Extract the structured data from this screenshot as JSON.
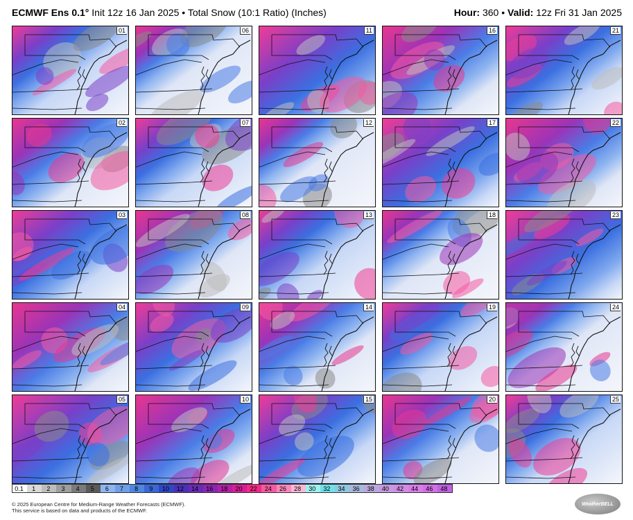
{
  "header": {
    "model": "ECMWF Ens 0.1°",
    "init": "Init 12z 16 Jan 2025",
    "product": "Total Snow (10:1 Ratio) (Inches)",
    "hour_label": "Hour:",
    "hour": "360",
    "valid_label": "Valid:",
    "valid": "12z Fri 31 Jan 2025"
  },
  "members": [
    "01",
    "06",
    "11",
    "16",
    "21",
    "02",
    "07",
    "12",
    "17",
    "22",
    "03",
    "08",
    "13",
    "18",
    "23",
    "04",
    "09",
    "14",
    "19",
    "24",
    "05",
    "10",
    "15",
    "20",
    "25"
  ],
  "colorbar": {
    "labels": [
      "0.1",
      "1",
      "2",
      "3",
      "4",
      "5",
      "6",
      "7",
      "8",
      "9",
      "10",
      "12",
      "14",
      "16",
      "18",
      "20",
      "22",
      "24",
      "26",
      "28",
      "30",
      "32",
      "34",
      "36",
      "38",
      "40",
      "42",
      "44",
      "46",
      "48"
    ],
    "colors": [
      "#ffffff",
      "#d9d9d9",
      "#bdbdbd",
      "#9e9e9e",
      "#7b7b7b",
      "#5a5a5a",
      "#8fb5f0",
      "#6f9ee8",
      "#4e86e0",
      "#3a66d6",
      "#2f47c4",
      "#4a2fb8",
      "#6a2ab4",
      "#8a26b0",
      "#b021a6",
      "#d81e96",
      "#f02a88",
      "#f55aa2",
      "#f889bc",
      "#fab8d6",
      "#9ff0f0",
      "#70e0e8",
      "#8ec8e0",
      "#a8b8dc",
      "#b9a8dc",
      "#c49ae0",
      "#cf8ce4",
      "#d87ee8",
      "#d070e8",
      "#c060e0"
    ]
  },
  "footer": {
    "line1": "© 2025 European Centre for Medium-Range Weather Forecasts (ECMWF).",
    "line2": "This service is based on data and products of the ECMWF."
  },
  "logo_text": "WeatherBELL"
}
